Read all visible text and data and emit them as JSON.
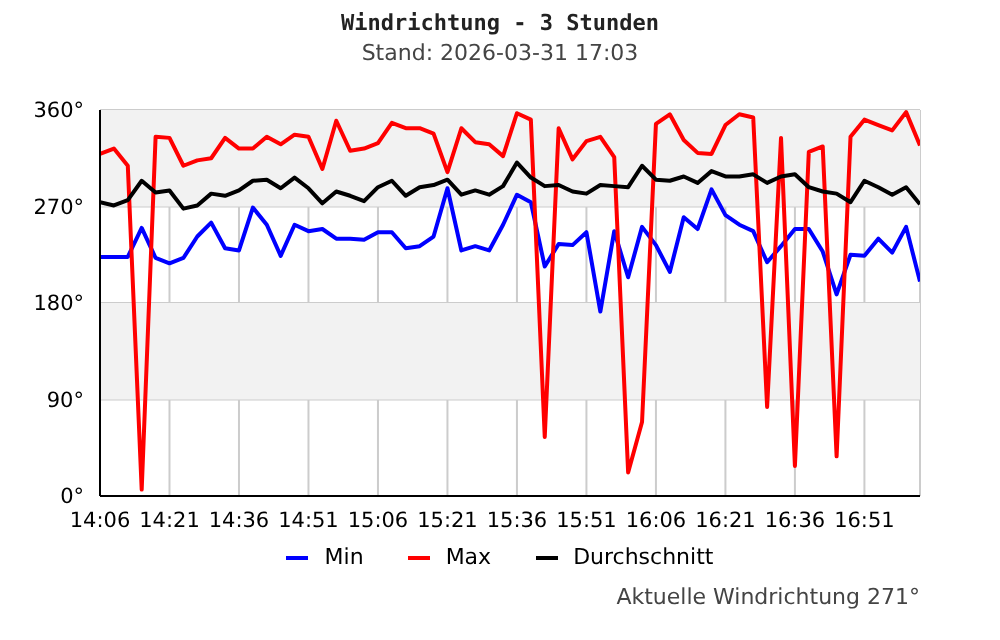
{
  "chart_data": {
    "type": "line",
    "title": "Windrichtung - 3 Stunden",
    "subtitle": "Stand: 2026-03-31 17:03",
    "annotations": [
      "Aktuelle Windrichtung 271°"
    ],
    "x": [
      14.1,
      14.15,
      14.2,
      14.25,
      14.3,
      14.35,
      14.4,
      14.45,
      14.5,
      14.55,
      14.6,
      14.65,
      14.7,
      14.75,
      14.8,
      14.85,
      14.9,
      14.95,
      15.0,
      15.05,
      15.1,
      15.15,
      15.2,
      15.25,
      15.3,
      15.35,
      15.4,
      15.45,
      15.5,
      15.55,
      15.6,
      15.65,
      15.7,
      15.75,
      15.8,
      15.85,
      15.9,
      15.95,
      16.0,
      16.05,
      16.1,
      16.15,
      16.2,
      16.25,
      16.3,
      16.35,
      16.4,
      16.45,
      16.5,
      16.55,
      16.6,
      16.65,
      16.7,
      16.75,
      16.8,
      16.85,
      16.9,
      16.95,
      17.0,
      17.05
    ],
    "series": [
      {
        "name": "Min",
        "color": "#0000ff",
        "values": [
          223,
          223,
          223,
          250,
          222,
          217,
          222,
          242,
          255,
          231,
          229,
          269,
          253,
          224,
          253,
          247,
          249,
          240,
          240,
          239,
          246,
          246,
          231,
          233,
          242,
          287,
          229,
          233,
          229,
          253,
          281,
          274,
          214,
          235,
          234,
          246,
          172,
          247,
          204,
          251,
          234,
          209,
          260,
          249,
          286,
          262,
          253,
          247,
          218,
          233,
          249,
          249,
          228,
          188,
          225,
          224,
          240,
          227,
          251,
          200
        ]
      },
      {
        "name": "Max",
        "color": "#ff0000",
        "values": [
          319,
          324,
          308,
          6,
          335,
          334,
          308,
          313,
          315,
          334,
          324,
          324,
          335,
          328,
          337,
          335,
          305,
          350,
          322,
          324,
          329,
          348,
          343,
          343,
          338,
          302,
          343,
          330,
          328,
          317,
          357,
          351,
          55,
          343,
          314,
          331,
          335,
          316,
          22,
          69,
          347,
          356,
          332,
          320,
          319,
          346,
          356,
          353,
          83,
          334,
          28,
          321,
          326,
          37,
          335,
          351,
          346,
          341,
          358,
          327
        ]
      },
      {
        "name": "Durchschnitt",
        "color": "#000000",
        "values": [
          274,
          271,
          276,
          294,
          283,
          285,
          268,
          271,
          282,
          280,
          285,
          294,
          295,
          287,
          297,
          287,
          273,
          284,
          280,
          275,
          288,
          294,
          280,
          288,
          290,
          295,
          281,
          285,
          281,
          289,
          311,
          297,
          289,
          290,
          284,
          282,
          290,
          289,
          288,
          308,
          295,
          294,
          298,
          292,
          303,
          298,
          298,
          300,
          292,
          298,
          300,
          288,
          284,
          282,
          274,
          294,
          288,
          281,
          288,
          272
        ]
      }
    ],
    "xlim": [
      14.1,
      17.05
    ],
    "xticks": [
      {
        "value": 14.1,
        "label": "14:06"
      },
      {
        "value": 14.35,
        "label": "14:21"
      },
      {
        "value": 14.6,
        "label": "14:36"
      },
      {
        "value": 14.85,
        "label": "14:51"
      },
      {
        "value": 15.1,
        "label": "15:06"
      },
      {
        "value": 15.35,
        "label": "15:21"
      },
      {
        "value": 15.6,
        "label": "15:36"
      },
      {
        "value": 15.85,
        "label": "15:51"
      },
      {
        "value": 16.1,
        "label": "16:06"
      },
      {
        "value": 16.35,
        "label": "16:21"
      },
      {
        "value": 16.6,
        "label": "16:36"
      },
      {
        "value": 16.85,
        "label": "16:51"
      }
    ],
    "ylim": [
      0,
      360
    ],
    "yticks": [
      {
        "value": 0,
        "label": "0°"
      },
      {
        "value": 90,
        "label": "90°"
      },
      {
        "value": 180,
        "label": "180°"
      },
      {
        "value": 270,
        "label": "270°"
      },
      {
        "value": 360,
        "label": "360°"
      }
    ],
    "bands": [
      {
        "axis": "y",
        "from": 270,
        "to": 360,
        "color": "#f2f2f2"
      },
      {
        "axis": "y",
        "from": 90,
        "to": 180,
        "color": "#f2f2f2"
      }
    ],
    "grid": true,
    "legend": "bottom",
    "marker": "none",
    "line_style": "solid"
  }
}
